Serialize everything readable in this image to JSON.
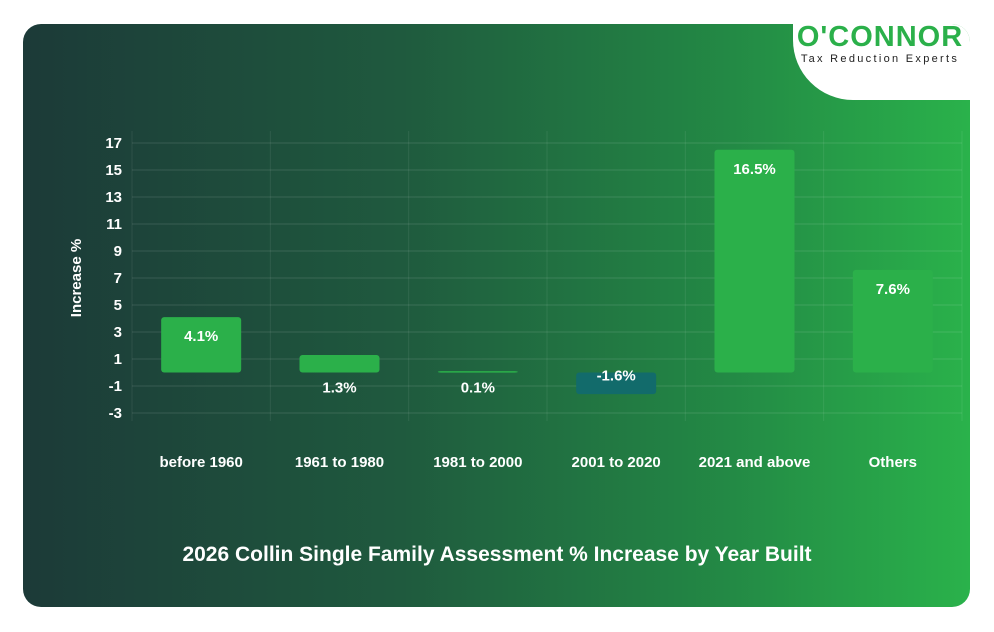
{
  "logo": {
    "brand": "O'CONNOR",
    "tagline": "Tax Reduction Experts"
  },
  "chart_data": {
    "type": "bar",
    "title": "2026 Collin Single Family Assessment % Increase by Year Built",
    "ylabel": "Increase %",
    "xlabel": "",
    "categories": [
      "before 1960",
      "1961 to 1980",
      "1981 to 2000",
      "2001 to 2020",
      "2021 and above",
      "Others"
    ],
    "values": [
      4.1,
      1.3,
      0.1,
      -1.6,
      16.5,
      7.6
    ],
    "data_labels": [
      "4.1%",
      "1.3%",
      "0.1%",
      "-1.6%",
      "16.5%",
      "7.6%"
    ],
    "ylim": [
      -3,
      17
    ],
    "yticks": [
      17,
      15,
      13,
      11,
      9,
      7,
      5,
      3,
      1,
      -1,
      -3
    ],
    "grid": true,
    "colors": {
      "positive": "#2bb04a",
      "negative": "#126b6b"
    }
  }
}
